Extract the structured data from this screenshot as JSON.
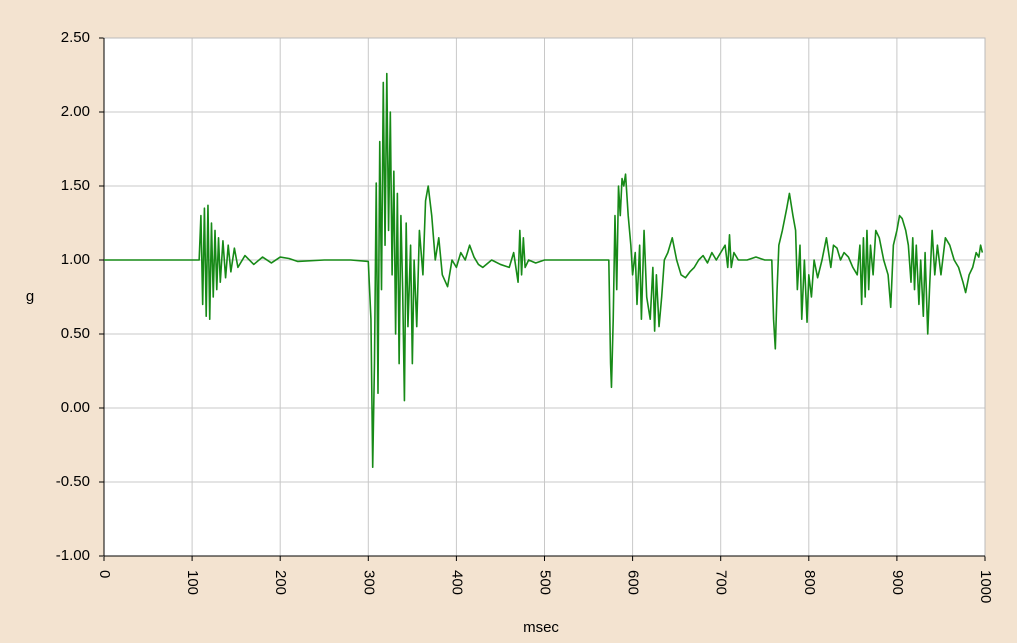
{
  "chart_data": {
    "type": "line",
    "xlabel": "msec",
    "ylabel": "g",
    "color": "#178a17",
    "grid": true,
    "xlim": [
      0,
      1000
    ],
    "xticks": [
      0,
      100,
      200,
      300,
      400,
      500,
      600,
      700,
      800,
      900,
      1000
    ],
    "ylim": [
      -1,
      2.5
    ],
    "yticks": [
      {
        "value": -1,
        "label": "-1.00"
      },
      {
        "value": -0.5,
        "label": "-0.50"
      },
      {
        "value": 0,
        "label": "0.00"
      },
      {
        "value": 0.5,
        "label": "0.50"
      },
      {
        "value": 1,
        "label": "1.00"
      },
      {
        "value": 1.5,
        "label": "1.50"
      },
      {
        "value": 2,
        "label": "2.00"
      },
      {
        "value": 2.5,
        "label": "2.50"
      }
    ],
    "x": [
      0,
      50,
      108,
      110,
      112,
      114,
      116,
      118,
      120,
      122,
      124,
      126,
      128,
      130,
      132,
      135,
      138,
      141,
      144,
      148,
      152,
      160,
      170,
      180,
      190,
      200,
      210,
      220,
      250,
      280,
      300,
      303,
      305,
      307,
      309,
      311,
      313,
      315,
      317,
      319,
      321,
      323,
      325,
      327,
      329,
      331,
      333,
      335,
      337,
      339,
      341,
      343,
      345,
      348,
      350,
      352,
      355,
      358,
      362,
      365,
      368,
      372,
      376,
      380,
      384,
      390,
      395,
      400,
      405,
      410,
      415,
      420,
      425,
      430,
      440,
      450,
      460,
      465,
      470,
      472,
      474,
      476,
      478,
      482,
      490,
      500,
      520,
      550,
      573,
      575,
      576,
      578,
      580,
      582,
      584,
      586,
      588,
      590,
      592,
      595,
      598,
      600,
      603,
      605,
      608,
      610,
      613,
      616,
      620,
      623,
      625,
      627,
      630,
      633,
      636,
      640,
      645,
      650,
      655,
      660,
      665,
      670,
      675,
      680,
      685,
      690,
      695,
      700,
      705,
      708,
      710,
      712,
      715,
      720,
      730,
      740,
      750,
      758,
      760,
      762,
      764,
      766,
      770,
      775,
      778,
      782,
      785,
      787,
      790,
      792,
      795,
      798,
      800,
      803,
      806,
      810,
      815,
      820,
      825,
      828,
      832,
      836,
      840,
      845,
      850,
      855,
      858,
      860,
      862,
      864,
      866,
      868,
      870,
      873,
      876,
      880,
      885,
      890,
      893,
      896,
      900,
      903,
      906,
      910,
      913,
      916,
      918,
      920,
      922,
      925,
      927,
      930,
      932,
      935,
      937,
      940,
      943,
      946,
      950,
      955,
      960,
      965,
      970,
      975,
      978,
      982,
      986,
      990,
      993,
      995,
      997
    ],
    "values": [
      1,
      1,
      1,
      1.3,
      0.7,
      1.35,
      0.62,
      1.37,
      0.6,
      1.25,
      0.75,
      1.2,
      0.8,
      1.15,
      0.85,
      1.13,
      0.88,
      1.1,
      0.92,
      1.08,
      0.95,
      1.03,
      0.97,
      1.02,
      0.98,
      1.02,
      1.01,
      0.99,
      1,
      1,
      0.99,
      0.6,
      -0.4,
      0.3,
      1.52,
      0.1,
      1.8,
      0.8,
      2.2,
      1.1,
      2.26,
      1.2,
      2.0,
      0.9,
      1.6,
      0.5,
      1.45,
      0.3,
      1.3,
      0.8,
      0.05,
      1.25,
      0.55,
      1.1,
      0.3,
      1.0,
      0.55,
      1.2,
      0.9,
      1.4,
      1.5,
      1.3,
      1.0,
      1.15,
      0.9,
      0.82,
      1.0,
      0.95,
      1.05,
      1.0,
      1.1,
      1.02,
      0.97,
      0.95,
      1.0,
      0.97,
      0.95,
      1.05,
      0.85,
      1.2,
      0.9,
      1.15,
      0.95,
      1.0,
      0.98,
      1.0,
      1.0,
      1.0,
      1.0,
      0.3,
      0.14,
      0.6,
      1.3,
      0.8,
      1.5,
      1.3,
      1.55,
      1.5,
      1.58,
      1.3,
      1.1,
      0.9,
      1.05,
      0.7,
      1.1,
      0.6,
      1.2,
      0.75,
      0.6,
      0.95,
      0.52,
      0.9,
      0.55,
      0.75,
      1.0,
      1.05,
      1.15,
      1.0,
      0.9,
      0.88,
      0.92,
      0.95,
      1.0,
      1.03,
      0.98,
      1.05,
      1.0,
      1.05,
      1.1,
      0.95,
      1.17,
      0.95,
      1.05,
      1.0,
      1.0,
      1.02,
      1.0,
      1.0,
      0.6,
      0.4,
      0.8,
      1.1,
      1.2,
      1.35,
      1.45,
      1.3,
      1.2,
      0.8,
      1.1,
      0.6,
      1.0,
      0.58,
      0.9,
      0.75,
      1.0,
      0.88,
      1.0,
      1.15,
      0.95,
      1.1,
      1.08,
      1.0,
      1.05,
      1.02,
      0.95,
      0.9,
      1.1,
      0.7,
      1.15,
      0.75,
      1.2,
      0.8,
      1.1,
      0.9,
      1.2,
      1.15,
      1.0,
      0.9,
      0.68,
      1.1,
      1.2,
      1.3,
      1.28,
      1.2,
      1.1,
      0.85,
      1.15,
      0.8,
      1.1,
      0.7,
      1.0,
      0.62,
      1.05,
      0.5,
      0.8,
      1.2,
      0.9,
      1.1,
      0.9,
      1.15,
      1.1,
      1.0,
      0.95,
      0.85,
      0.78,
      0.9,
      0.95,
      1.05,
      1.02,
      1.1,
      1.05
    ]
  }
}
